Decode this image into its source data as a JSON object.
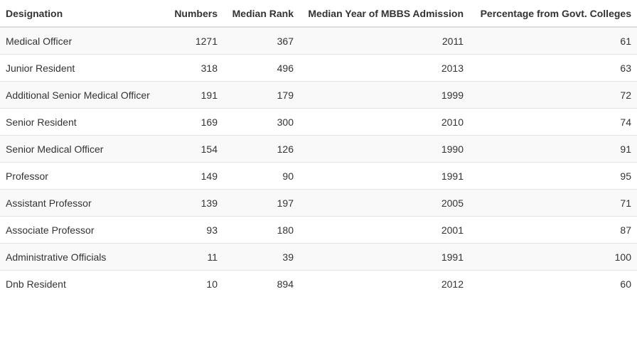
{
  "chart_data": {
    "type": "table",
    "columns": [
      "Designation",
      "Numbers",
      "Median Rank",
      "Median Year of MBBS Admission",
      "Percentage from Govt. Colleges"
    ],
    "rows": [
      [
        "Medical Officer",
        "1271",
        "367",
        "2011",
        "61"
      ],
      [
        "Junior Resident",
        "318",
        "496",
        "2013",
        "63"
      ],
      [
        "Additional Senior Medical Officer",
        "191",
        "179",
        "1999",
        "72"
      ],
      [
        "Senior Resident",
        "169",
        "300",
        "2010",
        "74"
      ],
      [
        "Senior Medical Officer",
        "154",
        "126",
        "1990",
        "91"
      ],
      [
        "Professor",
        "149",
        "90",
        "1991",
        "95"
      ],
      [
        "Assistant Professor",
        "139",
        "197",
        "2005",
        "71"
      ],
      [
        "Associate Professor",
        "93",
        "180",
        "2001",
        "87"
      ],
      [
        "Administrative Officials",
        "11",
        "39",
        "1991",
        "100"
      ],
      [
        "Dnb Resident",
        "10",
        "894",
        "2012",
        "60"
      ]
    ]
  }
}
